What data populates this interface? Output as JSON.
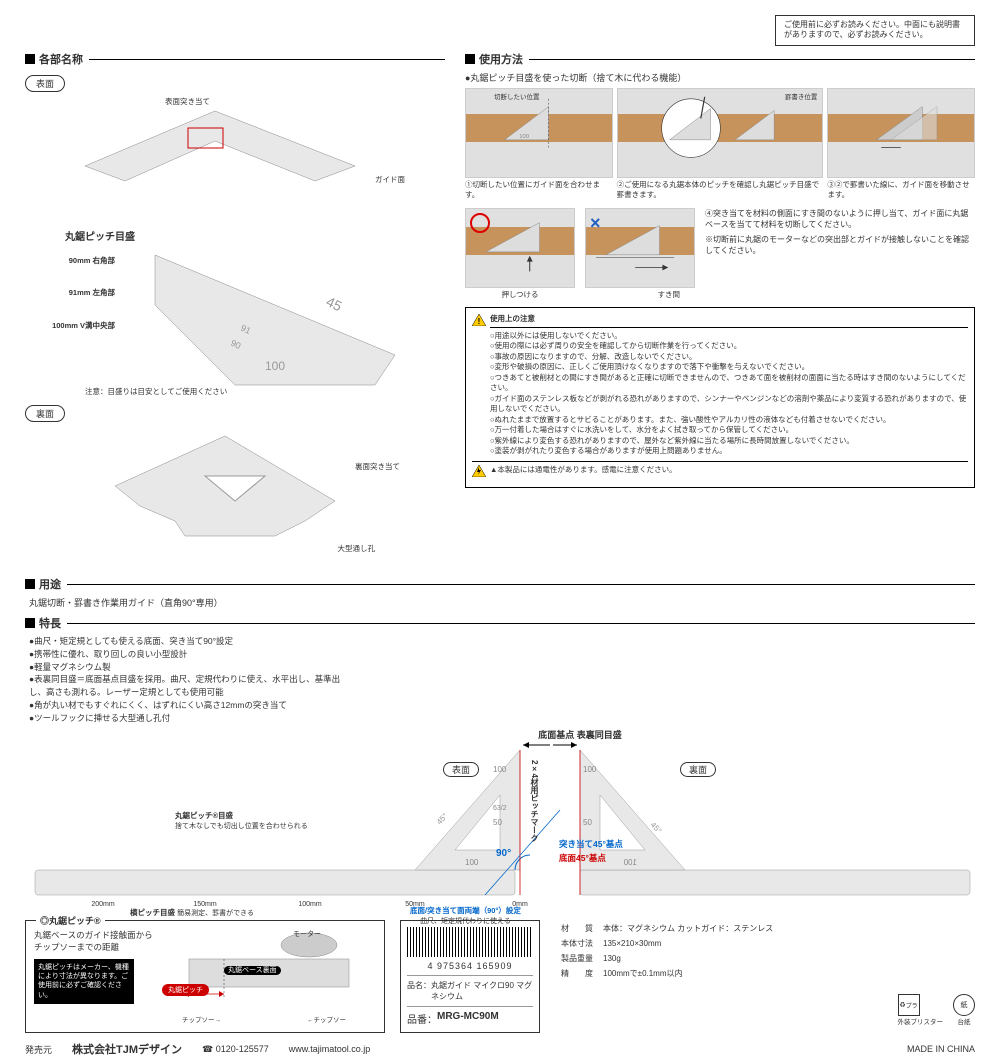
{
  "top_note": "ご使用前に必ずお読みください。中面にも説明書がありますので、必ずお読みください。",
  "sections": {
    "parts": "各部名称",
    "usage_method": "使用方法",
    "usage": "用途",
    "features": "特長"
  },
  "part_labels": {
    "front": "表面",
    "back": "裏面"
  },
  "front_annotations": {
    "top_stop": "表面突き当て",
    "guide_face": "ガイド面",
    "pitch_scale": "丸鋸ピッチ目盛",
    "m90": "90mm 右角部",
    "m91": "91mm 左角部",
    "m100": "100mm V溝中央部",
    "note": "注意：目盛りは目安としてご使用ください"
  },
  "back_annotations": {
    "back_stop": "裏面突き当て",
    "large_hole": "大型通し孔"
  },
  "usage_intro": "●丸鋸ピッチ目盛を使った切断（捨て木に代わる機能）",
  "steps": {
    "s1": "①切断したい位置にガイド面を合わせます。",
    "s2": "②ご使用になる丸鋸本体のピッチを確認し丸鋸ピッチ目盛で罫書きます。",
    "s3": "③②で罫書いた線に、ガイド面を移動させます。",
    "step1_label_cut": "切断したい位置",
    "step2_label_mark": "罫書き位置"
  },
  "ok_x": {
    "s4": "④突き当てを材料の側面にすき間のないように押し当て、ガイド面に丸鋸ベースを当てて材料を切断してください。",
    "note": "※切断前に丸鋸のモーターなどの突出部とガイドが接触しないことを確認してください。",
    "ok_label": "押しつける",
    "ng_label": "すき間"
  },
  "warning": {
    "header": "使用上の注意",
    "lines": [
      "○用途以外には使用しないでください。",
      "○使用の際には必ず周りの安全を確認してから切断作業を行ってください。",
      "○事故の原因になりますので、分解、改造しないでください。",
      "○変形や破損の原因に、正しくご使用頂けなくなりますので落下や衝撃を与えないでください。",
      "○つきあてと被削材との間にすき間があると正確に切断できませんので、つきあて面を被削材の面面に当たる時はすき間のないようにしてください。",
      "○ガイド面のステンレス板などが剥がれる恐れがありますので、シンナーやベンジンなどの溶剤や薬品により変質する恐れがありますので、使用しないでください。",
      "○ぬれたままで放置するとサビることがあります。また、強い酸性やアルカリ性の液体なども付着させないでください。",
      "○万一付着した場合はすぐに水洗いをして、水分をよく拭き取ってから保管してください。",
      "○紫外線により変色する恐れがありますので、屋外など紫外線に当たる場所に長時間放置しないでください。",
      "○塗装が剥がれたり変色する場合がありますが使用上問題ありません。"
    ],
    "electric": "▲本製品には通電性があります。感電に注意ください。"
  },
  "usage_text": "丸鋸切断・罫書き作業用ガイド（直角90°専用）",
  "features": [
    "●曲尺・矩定規としても使える底面、突き当て90°設定",
    "●携帯性に優れ、取り回しの良い小型設計",
    "●軽量マグネシウム製",
    "●表裏同目盛＝底面基点目盛を採用。曲尺、定規代わりに使え、水平出し、基準出し、高さも測れる。レーザー定規としても使用可能",
    "●角が丸い材でもすぐれにくく、はずれにくい高さ12mmの突き当て",
    "●ツールフックに挿せる大型通し孔付"
  ],
  "big_diagram": {
    "front_label": "表面",
    "back_label": "裏面",
    "base_center": "底面基点 表裏同目盛",
    "pitch_callout_title": "丸鋸ピッチ®目盛",
    "pitch_callout_sub": "捨て木なしでも切出し位置を合わせられる",
    "side_pitch": "横ピッチ目盛",
    "side_pitch_sub": "簡易測定、罫書ができる",
    "angle_90": "90°",
    "stop_45": "突き当て45°基点",
    "bottom_45": "底面45°基点",
    "bottom_stop_90": "底面/突き当て面両端（90°）設定",
    "bottom_stop_sub": "曲尺、矩定規代わりに使える",
    "ticks": {
      "t200": "200mm",
      "t150": "150mm",
      "t100": "100mm",
      "t50": "50mm",
      "t0": "0mm"
    },
    "vertical_label": "2×4材用ピッチマーク",
    "vertical_sub": "簡単にマーキングができる",
    "scale_nums": {
      "n100": "100",
      "n50": "50",
      "n45": "45",
      "n63": "63/2"
    }
  },
  "pitch_box": {
    "title": "◎丸鋸ピッチ®",
    "desc": "丸鋸ベースのガイド接触面からチップソーまでの距離",
    "note": "丸鋸ピッチはメーカー、機種により寸法が異なります。ご使用前に必ずご確認ください。",
    "pill": "丸鋸ピッチ",
    "base_label": "丸鋸ベース裏面",
    "motor": "モーター",
    "tip_dir": "←チップソー",
    "tip_dir2": "チップソー→"
  },
  "barcode": {
    "number": "4 975364 165909",
    "name_label": "品名：",
    "name": "丸鋸ガイド マイクロ90 マグネシウム",
    "code_label": "品番：",
    "code": "MRG-MC90M"
  },
  "specs": {
    "material_label": "材　　質",
    "material": "本体：マグネシウム カットガイド：ステンレス",
    "dims_label": "本体寸法",
    "dims": "135×210×30mm",
    "weight_label": "製品重量",
    "weight": "130g",
    "precision_label": "精　　度",
    "precision": "100mmで±0.1mm以内"
  },
  "recycle": {
    "blister": "プラ",
    "blister_sub": "外装ブリスター",
    "paper": "紙",
    "paper_sub": "台紙"
  },
  "footer": {
    "publisher_label": "発売元",
    "company": "株式会社TJMデザイン",
    "phone": "☎ 0120-125577",
    "url": "www.tajimatool.co.jp",
    "made": "MADE IN CHINA"
  }
}
